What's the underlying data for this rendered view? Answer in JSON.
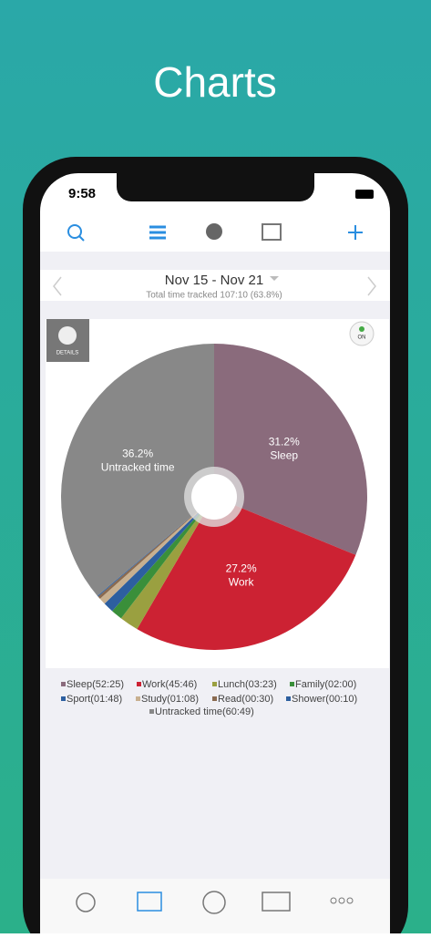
{
  "header": {
    "title": "Charts"
  },
  "status": {
    "time": "9:58"
  },
  "period": {
    "range": "Nov 15 - Nov 21",
    "total": "Total time tracked 107:10 (63.8%)"
  },
  "details_label": "DETAILS",
  "toggle_label": "ON",
  "chart_data": {
    "type": "pie",
    "categories": [
      "Sleep(52:25)",
      "Work(45:46)",
      "Lunch(03:23)",
      "Family(02:00)",
      "Sport(01:48)",
      "Study(01:08)",
      "Read(00:30)",
      "Shower(00:10)",
      "Untracked time(60:49)"
    ],
    "slice_labels": [
      "Sleep",
      "Work",
      null,
      null,
      null,
      null,
      null,
      null,
      "Untracked time"
    ],
    "values": [
      31.2,
      27.2,
      2.0,
      1.2,
      1.1,
      0.7,
      0.3,
      0.1,
      36.2
    ],
    "value_labels": [
      "31.2%",
      "27.2%",
      null,
      null,
      null,
      null,
      null,
      null,
      "36.2%"
    ],
    "colors": [
      "#8a6b7c",
      "#cc2233",
      "#9aa040",
      "#3a8f3a",
      "#2d5fa0",
      "#c8b090",
      "#8a6a50",
      "#2d5f9f",
      "#888888"
    ]
  }
}
